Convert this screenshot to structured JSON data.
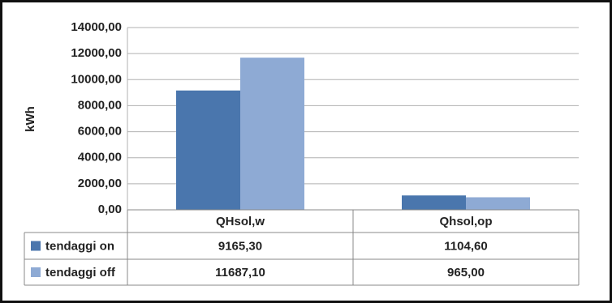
{
  "chart_data": {
    "type": "bar",
    "y_label": "kWh",
    "categories": [
      "QHsol,w",
      "Qhsol,op"
    ],
    "series": [
      {
        "name": "tendaggi on",
        "color": "#4a76ad",
        "values": [
          9165.3,
          1104.6
        ],
        "value_labels": [
          "9165,30",
          "1104,60"
        ]
      },
      {
        "name": "tendaggi off",
        "color": "#8eaad4",
        "values": [
          11687.1,
          965.0
        ],
        "value_labels": [
          "11687,10",
          "965,00"
        ]
      }
    ],
    "ylim": [
      0,
      14000
    ],
    "yticks": [
      {
        "value": 0,
        "label": "0,00"
      },
      {
        "value": 2000,
        "label": "2000,00"
      },
      {
        "value": 4000,
        "label": "4000,00"
      },
      {
        "value": 6000,
        "label": "6000,00"
      },
      {
        "value": 8000,
        "label": "8000,00"
      },
      {
        "value": 10000,
        "label": "10000,00"
      },
      {
        "value": 12000,
        "label": "12000,00"
      },
      {
        "value": 14000,
        "label": "14000,00"
      }
    ],
    "grid": true
  }
}
